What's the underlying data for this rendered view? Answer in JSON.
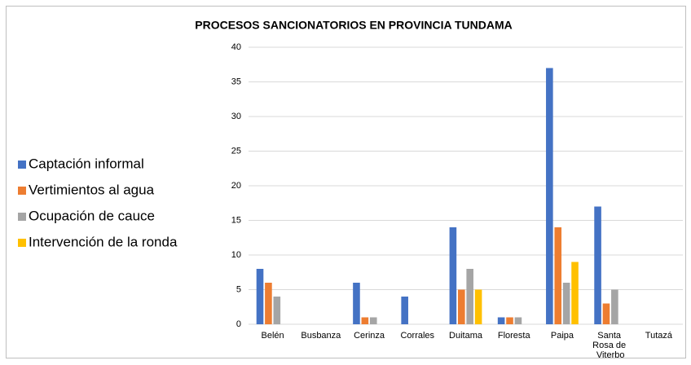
{
  "chart_data": {
    "type": "bar",
    "title": "PROCESOS SANCIONATORIOS EN PROVINCIA TUNDAMA",
    "categories": [
      "Belén",
      "Busbanza",
      "Cerinza",
      "Corrales",
      "Duitama",
      "Floresta",
      "Paipa",
      "Santa Rosa de Viterbo",
      "Tutazá"
    ],
    "series": [
      {
        "name": "Captación informal",
        "color": "#4472c4",
        "values": [
          8,
          0,
          6,
          4,
          14,
          1,
          37,
          17,
          0
        ]
      },
      {
        "name": "Vertimientos al agua",
        "color": "#ed7d31",
        "values": [
          6,
          0,
          1,
          0,
          5,
          1,
          14,
          3,
          0
        ]
      },
      {
        "name": "Ocupación de cauce",
        "color": "#a5a5a5",
        "values": [
          4,
          0,
          1,
          0,
          8,
          1,
          6,
          5,
          0
        ]
      },
      {
        "name": "Intervención de la ronda",
        "color": "#ffc000",
        "values": [
          0,
          0,
          0,
          0,
          5,
          0,
          9,
          0,
          0
        ]
      }
    ],
    "ylim": [
      0,
      40
    ],
    "yticks": [
      0,
      5,
      10,
      15,
      20,
      25,
      30,
      35,
      40
    ],
    "grid": true,
    "legend": "left"
  }
}
